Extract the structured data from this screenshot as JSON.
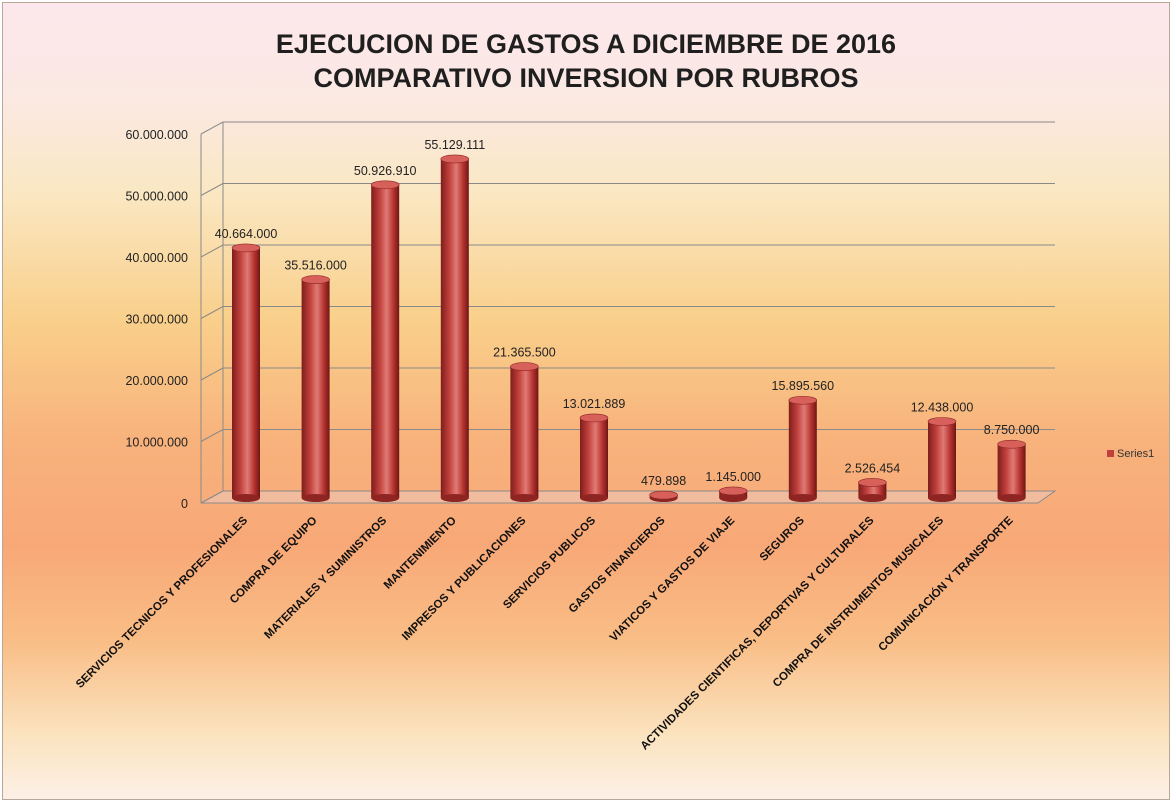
{
  "chart_data": {
    "type": "bar",
    "title": "EJECUCION DE GASTOS A DICIEMBRE DE 2016",
    "subtitle": "COMPARATIVO INVERSION POR RUBROS",
    "categories": [
      "SERVICIOS TECNICOS Y PROFESIONALES",
      "COMPRA DE EQUIPO",
      "MATERIALES Y SUMINISTROS",
      "MANTENIMIENTO",
      "IMPRESOS Y PUBLICACIONES",
      "SERVICIOS PUBLICOS",
      "GASTOS FINANCIEROS",
      "VIATICOS Y GASTOS DE VIAJE",
      "SEGUROS",
      "ACTIVIDADES CIENTIFICAS, DEPORTIVAS Y CULTURALES",
      "COMPRA DE INSTRUMENTOS MUSICALES",
      "COMUNICACIÓN Y TRANSPORTE"
    ],
    "series": [
      {
        "name": "Series1",
        "values": [
          40664000,
          35516000,
          50926910,
          55129111,
          21365500,
          13021889,
          479898,
          1145000,
          15895560,
          2526454,
          12438000,
          8750000
        ],
        "labels": [
          "40.664.000",
          "35.516.000",
          "50.926.910",
          "55.129.111",
          "21.365.500",
          "13.021.889",
          "479.898",
          "1.145.000",
          "15.895.560",
          "2.526.454",
          "12.438.000",
          "8.750.000"
        ]
      }
    ],
    "ylim": [
      0,
      60000000
    ],
    "yticks": [
      "0",
      "10.000.000",
      "20.000.000",
      "30.000.000",
      "40.000.000",
      "50.000.000",
      "60.000.000"
    ],
    "xlabel": "",
    "ylabel": "",
    "grid": true,
    "legend_position": "right",
    "bar_color": "#c0403c",
    "bar_dark_color": "#7e1d1b",
    "bar_light_color": "#e07a74"
  }
}
